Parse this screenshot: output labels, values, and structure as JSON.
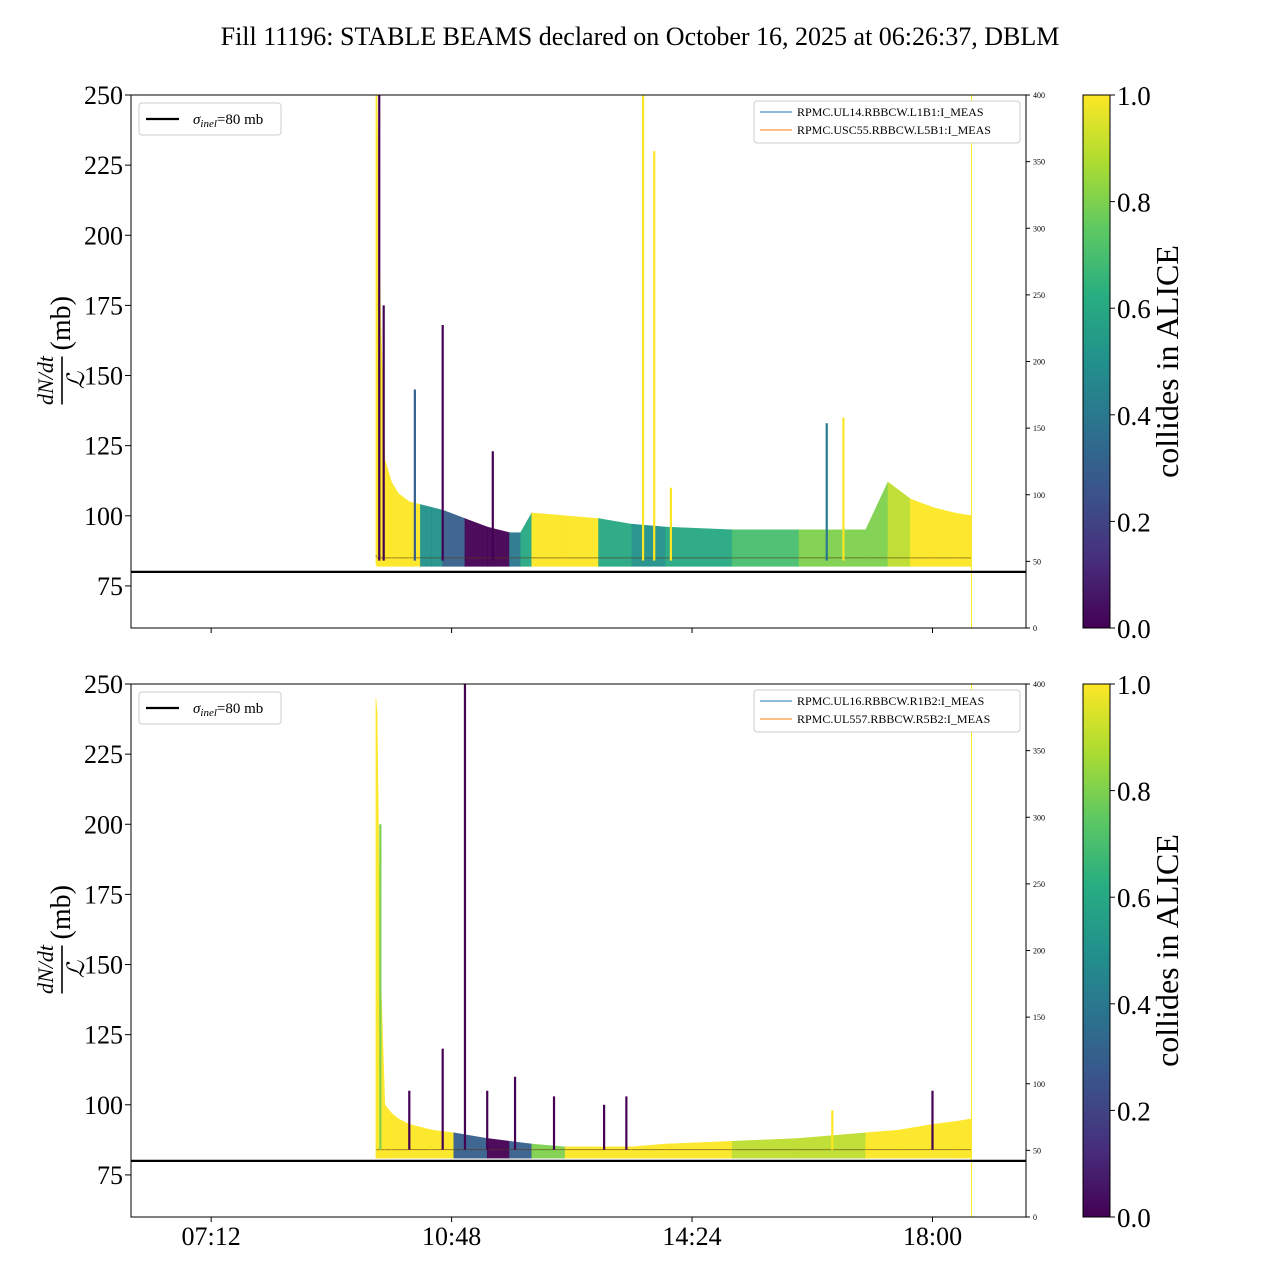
{
  "figure": {
    "title": "Fill 11196: STABLE BEAMS declared on October 16, 2025 at 06:26:37, DBLM"
  },
  "colors": {
    "reference_line": "#000000",
    "blue_series": "#1f77b4",
    "orange_series": "#ff7f0e",
    "colormap": [
      "#440154",
      "#472d7b",
      "#3b528b",
      "#2c728e",
      "#21918c",
      "#28ae80",
      "#5ec962",
      "#addc30",
      "#fde725"
    ]
  },
  "chart_data": [
    {
      "type": "line",
      "panel": "top",
      "ylabel": {
        "numerator": "dN/dt",
        "denominator": "ℒ",
        "unit": "(mb)"
      },
      "ylim": [
        60,
        250
      ],
      "yticks": [
        75,
        100,
        125,
        150,
        175,
        200,
        225,
        250
      ],
      "y2lim": [
        0,
        400
      ],
      "y2ticks": [
        0,
        50,
        100,
        150,
        200,
        250,
        300,
        350,
        400
      ],
      "x_start": "06:00",
      "x_end": "19:24",
      "xticks": [
        "07:12",
        "10:48",
        "14:24",
        "18:00"
      ],
      "show_xtick_labels": false,
      "reference_line": {
        "label_symbol": "σ",
        "label_sub": "inel",
        "label_value": "=80 mb",
        "y": 80
      },
      "legend_left_position": "upper left",
      "legend_right_position": "upper right",
      "series": [
        {
          "name": "RPMC.UL14.RBBCW.L1B1:I_MEAS",
          "color": "blue"
        },
        {
          "name": "RPMC.USC55.RBBCW.L5B1:I_MEAS",
          "color": "orange"
        }
      ],
      "x": [
        "09:40",
        "09:41",
        "09:44",
        "09:48",
        "09:54",
        "10:00",
        "10:10",
        "10:20",
        "10:30",
        "10:40",
        "11:00",
        "11:20",
        "11:40",
        "11:50",
        "12:00",
        "12:30",
        "13:00",
        "13:30",
        "14:00",
        "15:00",
        "16:00",
        "17:00",
        "17:20",
        "17:40",
        "18:00",
        "18:20",
        "18:35"
      ],
      "band_upper": [
        250,
        250,
        175,
        120,
        112,
        108,
        105,
        104,
        103,
        102,
        99,
        96,
        94,
        94,
        101,
        100,
        99,
        97,
        96,
        95,
        95,
        95,
        112,
        106,
        103,
        101,
        100
      ],
      "band_lower": [
        83,
        82,
        82,
        82,
        82,
        82,
        82,
        82,
        82,
        82,
        82,
        82,
        82,
        82,
        82,
        82,
        82,
        82,
        82,
        82,
        82,
        82,
        82,
        82,
        82,
        82,
        82
      ],
      "collides_level": [
        1,
        1,
        1,
        1,
        1,
        1,
        1,
        0.5,
        0.5,
        0.3,
        0,
        0,
        0.4,
        0.6,
        1,
        1,
        0.6,
        0.5,
        0.6,
        0.7,
        0.8,
        0.8,
        0.9,
        1,
        1,
        1,
        1
      ],
      "spikes": [
        {
          "x": "09:43",
          "y": 250,
          "level": 0
        },
        {
          "x": "09:47",
          "y": 175,
          "level": 0
        },
        {
          "x": "10:15",
          "y": 145,
          "level": 0.3
        },
        {
          "x": "10:40",
          "y": 168,
          "level": 0
        },
        {
          "x": "11:25",
          "y": 123,
          "level": 0
        },
        {
          "x": "13:40",
          "y": 250,
          "level": 1
        },
        {
          "x": "13:50",
          "y": 230,
          "level": 1
        },
        {
          "x": "14:05",
          "y": 110,
          "level": 1
        },
        {
          "x": "16:25",
          "y": 133,
          "level": 0.4
        },
        {
          "x": "16:40",
          "y": 135,
          "level": 1
        }
      ]
    },
    {
      "type": "line",
      "panel": "bottom",
      "ylabel": {
        "numerator": "dN/dt",
        "denominator": "ℒ",
        "unit": "(mb)"
      },
      "ylim": [
        60,
        250
      ],
      "yticks": [
        75,
        100,
        125,
        150,
        175,
        200,
        225,
        250
      ],
      "y2lim": [
        0,
        400
      ],
      "y2ticks": [
        0,
        50,
        100,
        150,
        200,
        250,
        300,
        350,
        400
      ],
      "x_start": "06:00",
      "x_end": "19:24",
      "xticks": [
        "07:12",
        "10:48",
        "14:24",
        "18:00"
      ],
      "show_xtick_labels": true,
      "reference_line": {
        "label_symbol": "σ",
        "label_sub": "inel",
        "label_value": "=80 mb",
        "y": 80
      },
      "legend_left_position": "upper left",
      "legend_right_position": "upper right",
      "series": [
        {
          "name": "RPMC.UL16.RBBCW.R1B2:I_MEAS",
          "color": "blue"
        },
        {
          "name": "RPMC.UL557.RBBCW.R5B2:I_MEAS",
          "color": "orange"
        }
      ],
      "x": [
        "09:40",
        "09:41",
        "09:44",
        "09:48",
        "09:54",
        "10:00",
        "10:10",
        "10:30",
        "10:50",
        "11:20",
        "11:40",
        "12:00",
        "12:30",
        "13:00",
        "13:30",
        "14:00",
        "15:00",
        "16:00",
        "17:00",
        "17:30",
        "18:00",
        "18:20",
        "18:35"
      ],
      "band_upper": [
        245,
        240,
        150,
        100,
        97,
        95,
        93,
        91,
        90,
        88,
        87,
        86,
        85,
        85,
        85,
        86,
        87,
        88,
        90,
        91,
        93,
        94,
        95
      ],
      "band_lower": [
        81,
        81,
        81,
        81,
        81,
        81,
        81,
        81,
        81,
        81,
        81,
        81,
        81,
        81,
        81,
        81,
        81,
        81,
        81,
        81,
        81,
        81,
        81
      ],
      "collides_level": [
        1,
        1,
        1,
        1,
        1,
        1,
        1,
        1,
        0.3,
        0,
        0.3,
        0.8,
        1,
        1,
        1,
        1,
        0.9,
        0.9,
        1,
        1,
        1,
        1,
        1
      ],
      "spikes": [
        {
          "x": "09:44",
          "y": 200,
          "level": 0.8
        },
        {
          "x": "10:10",
          "y": 105,
          "level": 0
        },
        {
          "x": "10:40",
          "y": 120,
          "level": 0
        },
        {
          "x": "11:00",
          "y": 250,
          "level": 0
        },
        {
          "x": "11:20",
          "y": 105,
          "level": 0
        },
        {
          "x": "11:45",
          "y": 110,
          "level": 0
        },
        {
          "x": "12:20",
          "y": 103,
          "level": 0
        },
        {
          "x": "13:05",
          "y": 100,
          "level": 0
        },
        {
          "x": "13:25",
          "y": 103,
          "level": 0
        },
        {
          "x": "16:30",
          "y": 98,
          "level": 1
        },
        {
          "x": "18:00",
          "y": 105,
          "level": 0
        }
      ]
    }
  ],
  "colorbars": [
    {
      "label": "collides in ALICE",
      "ticks": [
        "0.0",
        "0.2",
        "0.4",
        "0.6",
        "0.8",
        "1.0"
      ]
    },
    {
      "label": "collides in ALICE",
      "ticks": [
        "0.0",
        "0.2",
        "0.4",
        "0.6",
        "0.8",
        "1.0"
      ]
    }
  ]
}
